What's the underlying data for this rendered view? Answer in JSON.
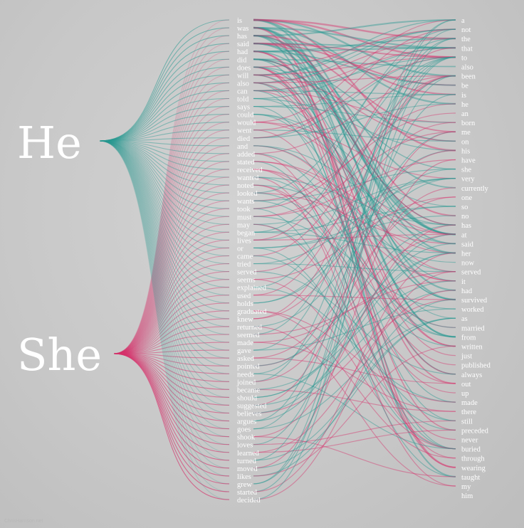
{
  "pronouns": [
    {
      "label": "He",
      "color": "#2a9a92"
    },
    {
      "label": "She",
      "color": "#d6336c"
    }
  ],
  "verbs": [
    "is",
    "was",
    "has",
    "said",
    "had",
    "did",
    "does",
    "will",
    "also",
    "can",
    "told",
    "says",
    "could",
    "would",
    "went",
    "died",
    "and",
    "added",
    "stated",
    "received",
    "wanted",
    "noted",
    "looked",
    "wants",
    "took",
    "must",
    "may",
    "began",
    "lives",
    "or",
    "came",
    "tried",
    "served",
    "seems",
    "explained",
    "used",
    "holds",
    "graduated",
    "knew",
    "returned",
    "seemed",
    "made",
    "gave",
    "asked",
    "pointed",
    "needs",
    "joined",
    "became",
    "should",
    "suggested",
    "believes",
    "argues",
    "goes",
    "shook",
    "loves",
    "learned",
    "turned",
    "moved",
    "likes",
    "grew",
    "started",
    "decided"
  ],
  "next_words": [
    "a",
    "not",
    "the",
    "that",
    "to",
    "also",
    "been",
    "be",
    "is",
    "he",
    "an",
    "born",
    "me",
    "on",
    "his",
    "have",
    "she",
    "very",
    "currently",
    "one",
    "so",
    "no",
    "has",
    "at",
    "said",
    "her",
    "now",
    "served",
    "it",
    "had",
    "survived",
    "worked",
    "as",
    "married",
    "from",
    "written",
    "just",
    "published",
    "always",
    "out",
    "up",
    "made",
    "there",
    "still",
    "preceded",
    "never",
    "buried",
    "through",
    "wearing",
    "taught",
    "my",
    "him"
  ],
  "credit": "ChrisHarrison.net"
}
